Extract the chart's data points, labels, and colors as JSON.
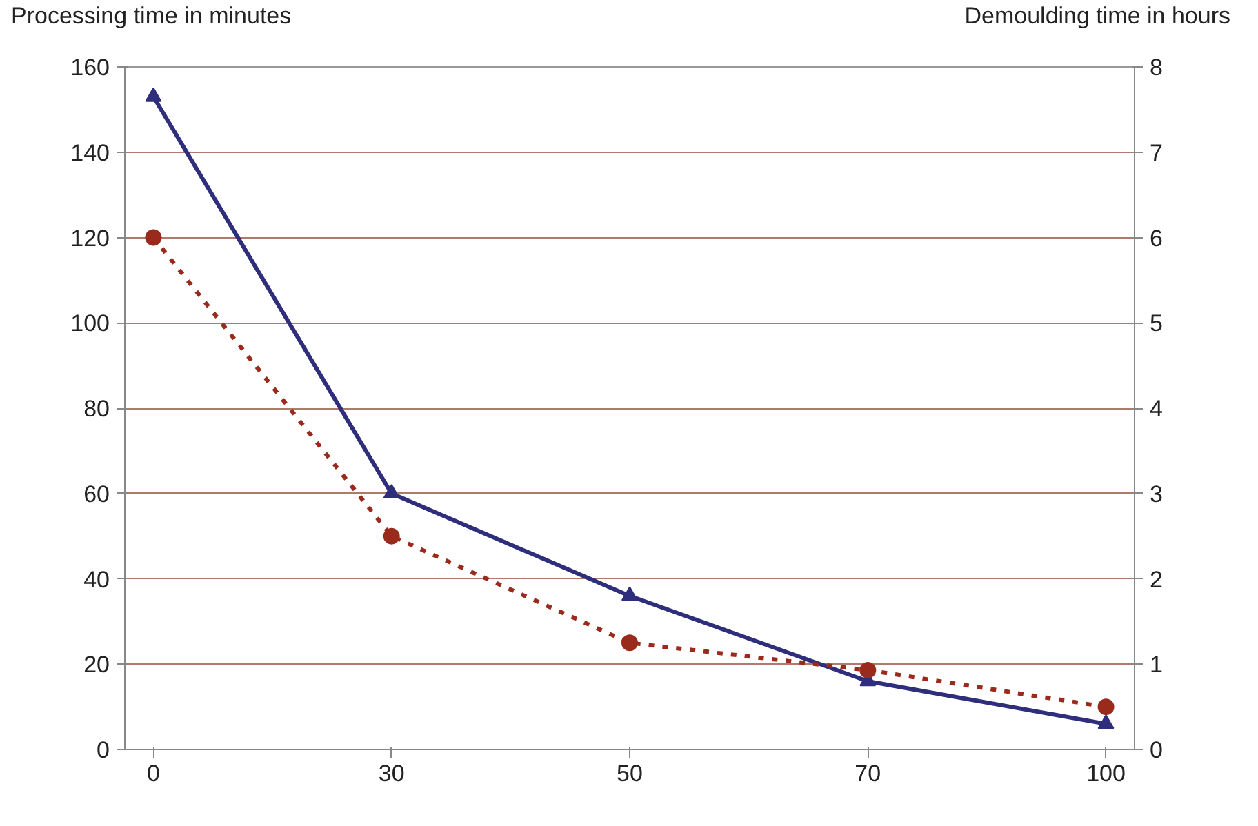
{
  "chart_data": {
    "type": "line",
    "ylabel": "Processing time in minutes",
    "y2label": "Demoulding time in hours",
    "categories": [
      "0",
      "30",
      "50",
      "70",
      "100"
    ],
    "series": [
      {
        "color": "#2f2e7c",
        "values": [
          153,
          60,
          36,
          16,
          6
        ],
        "marker": "triangle",
        "line_style": "solid"
      },
      {
        "color": "#9a2b1c",
        "values": [
          6,
          2.5,
          1.25,
          0.93,
          0.5
        ],
        "axis": "y2",
        "marker": "circle",
        "line_style": "dotted"
      }
    ],
    "ylim": [
      0,
      160
    ],
    "yticks": [
      0,
      20,
      40,
      60,
      80,
      100,
      120,
      140,
      160
    ],
    "y2lim": [
      0,
      8
    ],
    "y2ticks": [
      0,
      1,
      2,
      3,
      4,
      5,
      6,
      7,
      8
    ],
    "grid": "y"
  }
}
